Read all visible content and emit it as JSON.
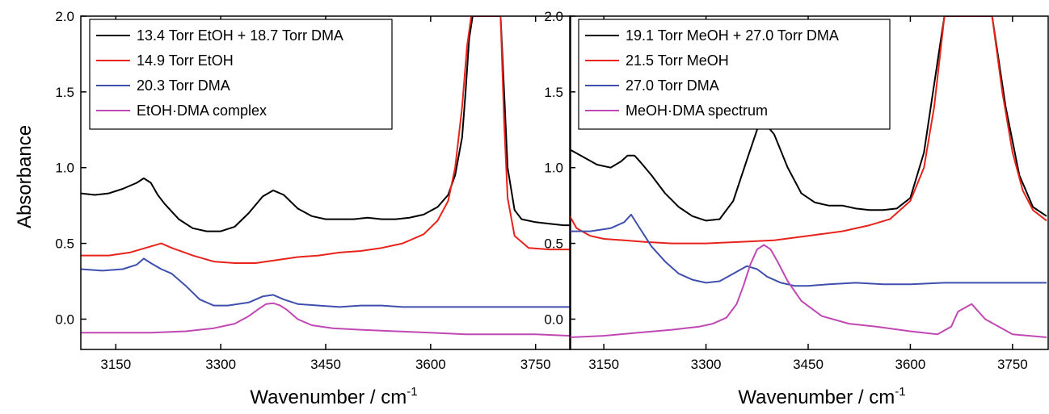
{
  "figure": {
    "ylabel": "Absorbance",
    "xlabel_main": "Wavenumber / cm",
    "xlabel_sup": "-1"
  },
  "chart_data": [
    {
      "type": "line",
      "xlabel": "Wavenumber / cm-1",
      "ylabel": "Absorbance",
      "xlim": [
        3100,
        3800
      ],
      "ylim": [
        -0.2,
        2.0
      ],
      "xticks": [
        "3150",
        "3300",
        "3450",
        "3600",
        "3750"
      ],
      "yticks": [
        "0.0",
        "0.5",
        "1.0",
        "1.5",
        "2.0"
      ],
      "grid": false,
      "legend_position": "top-left",
      "series": [
        {
          "name": "13.4 Torr EtOH + 18.7 Torr DMA",
          "color": "#000000",
          "x": [
            3100,
            3120,
            3140,
            3160,
            3180,
            3190,
            3200,
            3210,
            3220,
            3240,
            3260,
            3280,
            3300,
            3320,
            3340,
            3360,
            3375,
            3390,
            3410,
            3430,
            3450,
            3470,
            3490,
            3510,
            3530,
            3550,
            3570,
            3590,
            3610,
            3625,
            3635,
            3645,
            3650,
            3655,
            3660,
            3700,
            3705,
            3710,
            3720,
            3730,
            3750,
            3770,
            3790,
            3800
          ],
          "y": [
            0.83,
            0.82,
            0.83,
            0.86,
            0.9,
            0.93,
            0.9,
            0.82,
            0.76,
            0.66,
            0.6,
            0.58,
            0.58,
            0.61,
            0.7,
            0.81,
            0.85,
            0.82,
            0.73,
            0.68,
            0.66,
            0.66,
            0.66,
            0.67,
            0.66,
            0.66,
            0.67,
            0.69,
            0.74,
            0.82,
            0.95,
            1.2,
            1.5,
            1.85,
            2.0,
            2.0,
            1.5,
            1.0,
            0.72,
            0.66,
            0.64,
            0.63,
            0.62,
            0.62
          ]
        },
        {
          "name": "14.9 Torr EtOH",
          "color": "#e8231b",
          "x": [
            3100,
            3140,
            3170,
            3200,
            3215,
            3230,
            3260,
            3290,
            3320,
            3350,
            3380,
            3410,
            3440,
            3470,
            3500,
            3530,
            3560,
            3590,
            3610,
            3625,
            3635,
            3645,
            3652,
            3658,
            3700,
            3705,
            3710,
            3720,
            3740,
            3770,
            3800
          ],
          "y": [
            0.42,
            0.42,
            0.44,
            0.48,
            0.5,
            0.47,
            0.42,
            0.38,
            0.37,
            0.37,
            0.39,
            0.41,
            0.42,
            0.44,
            0.45,
            0.47,
            0.5,
            0.56,
            0.65,
            0.78,
            1.0,
            1.4,
            1.8,
            2.0,
            2.0,
            1.3,
            0.8,
            0.55,
            0.47,
            0.46,
            0.46
          ]
        },
        {
          "name": "20.3 Torr DMA",
          "color": "#3f4fae",
          "x": [
            3100,
            3130,
            3160,
            3180,
            3190,
            3200,
            3215,
            3230,
            3250,
            3270,
            3290,
            3310,
            3340,
            3360,
            3375,
            3390,
            3410,
            3440,
            3470,
            3500,
            3530,
            3560,
            3600,
            3640,
            3680,
            3720,
            3760,
            3800
          ],
          "y": [
            0.33,
            0.32,
            0.33,
            0.36,
            0.4,
            0.37,
            0.33,
            0.3,
            0.22,
            0.13,
            0.09,
            0.09,
            0.11,
            0.15,
            0.16,
            0.13,
            0.1,
            0.09,
            0.08,
            0.09,
            0.09,
            0.08,
            0.08,
            0.08,
            0.08,
            0.08,
            0.08,
            0.08
          ]
        },
        {
          "name": "EtOH·DMA complex",
          "color": "#c048b4",
          "x": [
            3100,
            3150,
            3200,
            3250,
            3290,
            3320,
            3340,
            3355,
            3365,
            3375,
            3385,
            3395,
            3410,
            3430,
            3460,
            3500,
            3550,
            3600,
            3650,
            3670,
            3680,
            3690,
            3710,
            3750,
            3800
          ],
          "y": [
            -0.09,
            -0.09,
            -0.09,
            -0.08,
            -0.06,
            -0.03,
            0.02,
            0.07,
            0.1,
            0.105,
            0.09,
            0.06,
            0.0,
            -0.04,
            -0.06,
            -0.07,
            -0.08,
            -0.09,
            -0.1,
            -0.1,
            -0.1,
            -0.1,
            -0.1,
            -0.1,
            -0.11
          ]
        }
      ]
    },
    {
      "type": "line",
      "xlabel": "Wavenumber / cm-1",
      "ylabel": "Absorbance",
      "xlim": [
        3100,
        3800
      ],
      "ylim": [
        -0.2,
        2.0
      ],
      "xticks": [
        "3150",
        "3300",
        "3450",
        "3600",
        "3750"
      ],
      "yticks": [
        "0.0",
        "0.5",
        "1.0",
        "1.5",
        "2.0"
      ],
      "grid": false,
      "legend_position": "top-left",
      "series": [
        {
          "name": "19.1 Torr MeOH + 27.0 Torr DMA",
          "color": "#000000",
          "x": [
            3100,
            3120,
            3140,
            3160,
            3175,
            3185,
            3195,
            3205,
            3220,
            3240,
            3260,
            3280,
            3300,
            3320,
            3340,
            3360,
            3375,
            3385,
            3400,
            3420,
            3440,
            3460,
            3480,
            3500,
            3520,
            3540,
            3560,
            3580,
            3600,
            3620,
            3640,
            3650,
            3670,
            3720,
            3740,
            3760,
            3780,
            3800
          ],
          "y": [
            1.12,
            1.07,
            1.02,
            1.0,
            1.04,
            1.08,
            1.08,
            1.03,
            0.95,
            0.83,
            0.74,
            0.68,
            0.65,
            0.66,
            0.78,
            1.05,
            1.25,
            1.3,
            1.22,
            1.0,
            0.83,
            0.77,
            0.75,
            0.75,
            0.73,
            0.72,
            0.72,
            0.73,
            0.8,
            1.1,
            1.7,
            2.0,
            2.0,
            2.0,
            1.4,
            0.95,
            0.74,
            0.68
          ]
        },
        {
          "name": "21.5 Torr MeOH",
          "color": "#e8231b",
          "x": [
            3100,
            3110,
            3130,
            3150,
            3180,
            3210,
            3250,
            3300,
            3350,
            3400,
            3450,
            3500,
            3540,
            3570,
            3600,
            3620,
            3635,
            3645,
            3650,
            3720,
            3735,
            3750,
            3765,
            3780,
            3800
          ],
          "y": [
            0.68,
            0.6,
            0.55,
            0.53,
            0.52,
            0.51,
            0.5,
            0.5,
            0.51,
            0.52,
            0.55,
            0.58,
            0.62,
            0.66,
            0.78,
            1.0,
            1.4,
            1.8,
            2.0,
            2.0,
            1.5,
            1.1,
            0.85,
            0.72,
            0.65
          ]
        },
        {
          "name": "27.0 Torr DMA",
          "color": "#3f4fae",
          "x": [
            3100,
            3130,
            3160,
            3180,
            3190,
            3200,
            3210,
            3220,
            3240,
            3260,
            3280,
            3300,
            3320,
            3340,
            3360,
            3375,
            3390,
            3410,
            3430,
            3450,
            3480,
            3520,
            3560,
            3600,
            3650,
            3700,
            3750,
            3800
          ],
          "y": [
            0.58,
            0.58,
            0.6,
            0.64,
            0.69,
            0.62,
            0.55,
            0.48,
            0.38,
            0.3,
            0.26,
            0.24,
            0.25,
            0.3,
            0.35,
            0.33,
            0.28,
            0.24,
            0.22,
            0.22,
            0.23,
            0.24,
            0.23,
            0.23,
            0.24,
            0.24,
            0.24,
            0.24
          ]
        },
        {
          "name": "MeOH·DMA spectrum",
          "color": "#c048b4",
          "x": [
            3100,
            3150,
            3200,
            3250,
            3290,
            3310,
            3330,
            3345,
            3355,
            3365,
            3375,
            3385,
            3395,
            3405,
            3420,
            3440,
            3470,
            3510,
            3550,
            3600,
            3640,
            3660,
            3670,
            3690,
            3710,
            3750,
            3800
          ],
          "y": [
            -0.12,
            -0.11,
            -0.09,
            -0.07,
            -0.05,
            -0.03,
            0.01,
            0.1,
            0.22,
            0.36,
            0.46,
            0.49,
            0.46,
            0.38,
            0.25,
            0.12,
            0.02,
            -0.03,
            -0.05,
            -0.08,
            -0.1,
            -0.05,
            0.05,
            0.1,
            0.0,
            -0.1,
            -0.12
          ]
        }
      ]
    }
  ]
}
